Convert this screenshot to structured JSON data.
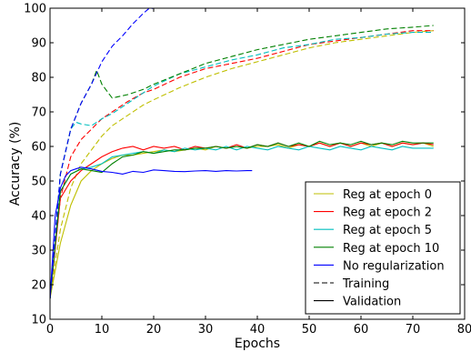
{
  "chart_data": {
    "type": "line",
    "xlabel": "Epochs",
    "ylabel": "Accuracy (%)",
    "xlim": [
      0,
      80
    ],
    "ylim": [
      10,
      100
    ],
    "xticks": [
      0,
      10,
      20,
      30,
      40,
      50,
      60,
      70,
      80
    ],
    "yticks": [
      10,
      20,
      30,
      40,
      50,
      60,
      70,
      80,
      90,
      100
    ],
    "grid": false,
    "legend_position": "bottom-right",
    "series": [
      {
        "name": "Reg at epoch 0",
        "color": "#bfbf00",
        "training": {
          "x": [
            0,
            2,
            4,
            6,
            8,
            10,
            12,
            15,
            18,
            20,
            25,
            30,
            35,
            40,
            45,
            50,
            55,
            60,
            65,
            70,
            74
          ],
          "y": [
            16,
            36,
            48,
            55,
            59,
            63,
            66,
            69,
            72,
            73.5,
            77,
            80,
            82.5,
            84.5,
            86.5,
            88.5,
            90,
            91,
            92,
            93,
            93.5
          ]
        },
        "validation": {
          "x": [
            0,
            2,
            4,
            6,
            8,
            10,
            12,
            14,
            16,
            18,
            20,
            22,
            24,
            26,
            28,
            30,
            32,
            34,
            36,
            38,
            40,
            42,
            44,
            46,
            48,
            50,
            52,
            54,
            56,
            58,
            60,
            62,
            64,
            66,
            68,
            70,
            72,
            74
          ],
          "y": [
            16,
            32,
            43,
            50,
            53,
            55,
            56.5,
            57.5,
            57.5,
            58,
            58.5,
            59,
            58.5,
            59,
            59.5,
            59,
            60,
            59.5,
            60,
            59.5,
            60,
            60,
            60.5,
            59.5,
            60.5,
            60,
            61,
            60,
            61,
            60,
            61,
            60,
            61,
            60,
            61,
            60.5,
            61,
            60
          ]
        }
      },
      {
        "name": "Reg at epoch 2",
        "color": "#ff0000",
        "training": {
          "x": [
            0,
            2,
            4,
            6,
            8,
            10,
            12,
            15,
            18,
            20,
            25,
            30,
            35,
            40,
            45,
            50,
            55,
            60,
            65,
            70,
            74
          ],
          "y": [
            16,
            45,
            57,
            62,
            65,
            68,
            70,
            73,
            75.5,
            76.5,
            80,
            82.5,
            84,
            85.5,
            87.5,
            89.5,
            90.5,
            91.5,
            92.5,
            93.5,
            93.5
          ]
        },
        "validation": {
          "x": [
            0,
            2,
            4,
            6,
            8,
            10,
            12,
            14,
            16,
            18,
            20,
            22,
            24,
            26,
            28,
            30,
            32,
            34,
            36,
            38,
            40,
            42,
            44,
            46,
            48,
            50,
            52,
            54,
            56,
            58,
            60,
            62,
            64,
            66,
            68,
            70,
            72,
            74
          ],
          "y": [
            16,
            45,
            50,
            53,
            55,
            57,
            58.5,
            59.5,
            60,
            59,
            60,
            59.5,
            60,
            59,
            60,
            59.5,
            60,
            59.5,
            60.5,
            59.5,
            60.5,
            60,
            61,
            60,
            60.5,
            60,
            61,
            60,
            61,
            60,
            61,
            60.5,
            61,
            60,
            61,
            60.5,
            61,
            60.5
          ]
        }
      },
      {
        "name": "Reg at epoch 5",
        "color": "#00bfbf",
        "training": {
          "x": [
            0,
            2,
            4,
            5,
            6,
            8,
            10,
            12,
            15,
            18,
            20,
            25,
            30,
            35,
            40,
            45,
            50,
            55,
            60,
            65,
            70,
            74
          ],
          "y": [
            16,
            52,
            65,
            67,
            66.5,
            66,
            68,
            69.5,
            72.5,
            75.5,
            77.5,
            81,
            83,
            85,
            86.5,
            88.5,
            89.5,
            91,
            91.5,
            92.5,
            93,
            93
          ]
        },
        "validation": {
          "x": [
            0,
            2,
            4,
            6,
            8,
            10,
            12,
            14,
            16,
            18,
            20,
            22,
            24,
            26,
            28,
            30,
            32,
            34,
            36,
            38,
            40,
            42,
            44,
            46,
            48,
            50,
            52,
            54,
            56,
            58,
            60,
            62,
            64,
            66,
            68,
            70,
            72,
            74
          ],
          "y": [
            16,
            47,
            52,
            53.5,
            54,
            55,
            57,
            57.5,
            58,
            58.5,
            58,
            59,
            58.5,
            59.5,
            59,
            59.5,
            59,
            60,
            59,
            60,
            59.5,
            59,
            60,
            59.5,
            59,
            60,
            59.5,
            59,
            60,
            59.5,
            59,
            60,
            59.5,
            59,
            60,
            59.5,
            59.5,
            59.5
          ]
        }
      },
      {
        "name": "Reg at epoch 10",
        "color": "#008000",
        "training": {
          "x": [
            0,
            2,
            4,
            6,
            8,
            9,
            10,
            12,
            15,
            18,
            20,
            25,
            30,
            35,
            40,
            45,
            50,
            55,
            60,
            65,
            70,
            74
          ],
          "y": [
            16,
            52,
            65,
            72.5,
            78,
            82,
            78,
            74,
            75,
            76.5,
            78,
            81,
            84,
            86,
            88,
            89.5,
            91,
            92,
            93,
            94,
            94.5,
            95
          ]
        },
        "validation": {
          "x": [
            0,
            2,
            4,
            6,
            8,
            10,
            12,
            14,
            16,
            18,
            20,
            22,
            24,
            26,
            28,
            30,
            32,
            34,
            36,
            38,
            40,
            42,
            44,
            46,
            48,
            50,
            52,
            54,
            56,
            58,
            60,
            62,
            64,
            66,
            68,
            70,
            72,
            74
          ],
          "y": [
            16,
            47,
            52,
            53.5,
            53,
            52.5,
            55,
            57,
            57.5,
            58.5,
            58,
            58.5,
            59,
            59,
            59.5,
            59.5,
            60,
            59.5,
            60,
            59.5,
            60.5,
            60,
            61,
            60,
            61,
            60,
            61.5,
            60.5,
            61,
            60.5,
            61.5,
            60.5,
            61,
            60.5,
            61.5,
            61,
            61,
            61
          ]
        }
      },
      {
        "name": "No regularization",
        "color": "#0000ff",
        "training": {
          "x": [
            0,
            2,
            4,
            6,
            8,
            10,
            12,
            14,
            16,
            18,
            19,
            20,
            25,
            30,
            35,
            39
          ],
          "y": [
            16,
            52,
            65,
            72.5,
            78,
            84.5,
            89,
            92,
            95.5,
            98.5,
            99.8,
            100,
            100,
            100,
            100,
            100
          ]
        },
        "validation": {
          "x": [
            0,
            1,
            2,
            3,
            4,
            5,
            6,
            8,
            10,
            12,
            14,
            16,
            18,
            20,
            22,
            24,
            26,
            28,
            30,
            32,
            34,
            36,
            38,
            39
          ],
          "y": [
            16,
            40,
            48,
            51.5,
            53,
            53.5,
            54,
            53.5,
            52.8,
            52.5,
            52,
            52.8,
            52.5,
            53.2,
            53,
            52.8,
            52.7,
            52.9,
            53,
            52.8,
            53,
            52.9,
            53,
            53
          ]
        }
      }
    ],
    "style_legend": [
      {
        "name": "Training",
        "dash": "dashed"
      },
      {
        "name": "Validation",
        "dash": "solid"
      }
    ]
  }
}
